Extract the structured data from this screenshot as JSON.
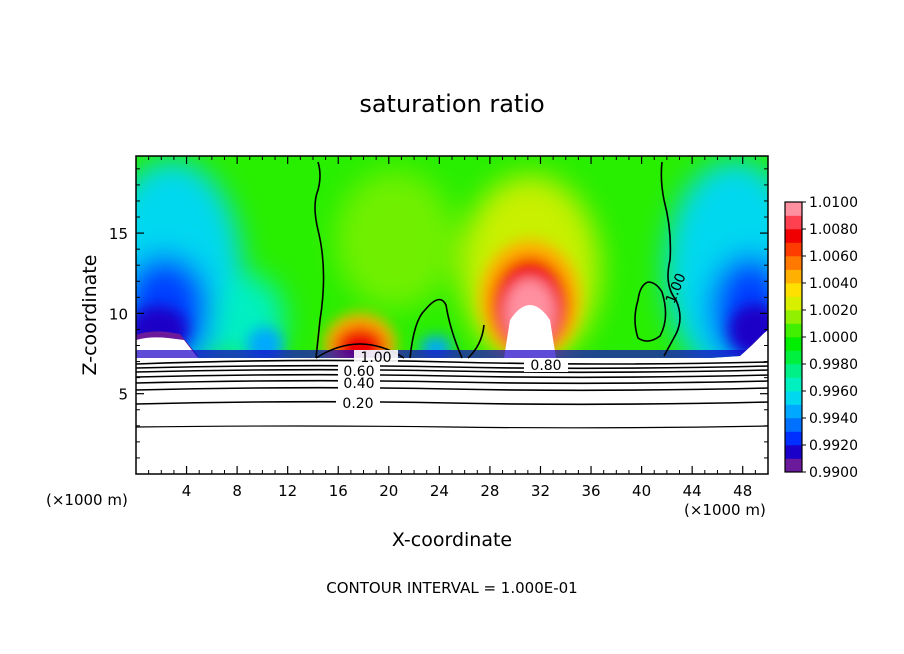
{
  "chart_data": {
    "type": "heatmap",
    "title": "saturation ratio",
    "xlabel": "X-coordinate",
    "ylabel": "Z-coordinate",
    "x_unit_left": "(×1000 m)",
    "x_unit_right": "(×1000 m)",
    "xlim": [
      0,
      50
    ],
    "ylim": [
      0,
      19.8
    ],
    "x_ticks": [
      4,
      8,
      12,
      16,
      20,
      24,
      28,
      32,
      36,
      40,
      44,
      48
    ],
    "x_tick_labels": [
      "4",
      "8",
      "12",
      "16",
      "20",
      "24",
      "28",
      "32",
      "36",
      "40",
      "44",
      "48"
    ],
    "y_ticks": [
      5,
      10,
      15
    ],
    "y_tick_labels": [
      "5",
      "10",
      "15"
    ],
    "colorbar": {
      "levels": [
        0.99,
        0.991,
        0.992,
        0.993,
        0.994,
        0.995,
        0.996,
        0.997,
        0.998,
        0.999,
        1.0,
        1.001,
        1.002,
        1.003,
        1.004,
        1.005,
        1.006,
        1.007,
        1.008,
        1.009,
        1.01
      ],
      "labels": [
        "0.9900",
        "0.9920",
        "0.9940",
        "0.9960",
        "0.9980",
        "1.0000",
        "1.0020",
        "1.0040",
        "1.0060",
        "1.0080",
        "1.0100"
      ],
      "colors": [
        "#6a1a9a",
        "#1a00c8",
        "#0030ff",
        "#0070ff",
        "#00a8ff",
        "#00d8f0",
        "#00f0c0",
        "#00f088",
        "#00f040",
        "#00ee00",
        "#40f000",
        "#90f000",
        "#d8f000",
        "#ffe000",
        "#ffb000",
        "#ff7800",
        "#ff3c00",
        "#f00000",
        "#ff4050",
        "#ff90a0"
      ]
    },
    "contour_lines": {
      "interval": 0.1,
      "labels": [
        "1.00",
        "0.60",
        "0.40",
        "0.20",
        "0.80",
        "1.00"
      ]
    },
    "footnote": "CONTOUR INTERVAL = 1.000E-01"
  }
}
